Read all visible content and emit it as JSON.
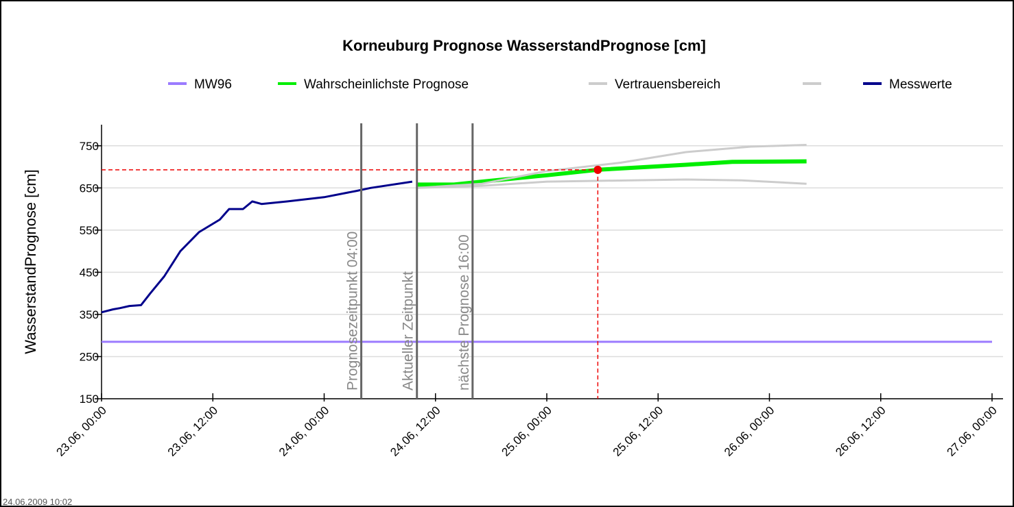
{
  "chart_data": {
    "type": "line",
    "title": "Korneuburg Prognose WasserstandPrognose [cm]",
    "ylabel": "WasserstandPrognose [cm]",
    "footer": "24.06.2009 10:02",
    "xlim": [
      "23.06, 00:00",
      "27.06, 00:00"
    ],
    "xticks": [
      "23.06, 00:00",
      "23.06, 12:00",
      "24.06, 00:00",
      "24.06, 12:00",
      "25.06, 00:00",
      "25.06, 12:00",
      "26.06, 00:00",
      "26.06, 12:00",
      "27.06, 00:00"
    ],
    "ylim": [
      150,
      800
    ],
    "yticks": [
      150,
      250,
      350,
      450,
      550,
      650,
      750
    ],
    "grid": true,
    "series": [
      {
        "name": "MW96",
        "color": "#9b7bff",
        "x": [
          "23.06, 00:00",
          "27.06, 00:00"
        ],
        "values": [
          285,
          285
        ]
      },
      {
        "name": "Wahrscheinlichste Prognose",
        "color": "#00ee00",
        "x": [
          "24.06, 10:00",
          "24.06, 14:00",
          "24.06, 17:00",
          "25.06, 00:00",
          "25.06, 05:30",
          "25.06, 15:00",
          "25.06, 20:00",
          "26.06, 04:00"
        ],
        "values": [
          658,
          658,
          665,
          680,
          693,
          705,
          712,
          713
        ]
      },
      {
        "name": "Vertrauensbereich",
        "color": "#cccccc",
        "x": [
          "24.06, 10:00",
          "24.06, 17:00",
          "25.06, 00:00",
          "25.06, 08:00",
          "25.06, 15:00",
          "25.06, 22:00",
          "26.06, 04:00"
        ],
        "values": [
          650,
          660,
          690,
          710,
          735,
          748,
          752
        ]
      },
      {
        "name": null,
        "color": "#cccccc",
        "x": [
          "24.06, 10:00",
          "24.06, 17:00",
          "25.06, 00:00",
          "25.06, 15:00",
          "25.06, 21:00",
          "26.06, 04:00"
        ],
        "values": [
          650,
          655,
          665,
          670,
          668,
          660
        ]
      },
      {
        "name": "Messwerte",
        "color": "#00008b",
        "x": [
          "23.06, 00:00",
          "23.06, 01:15",
          "23.06, 02:00",
          "23.06, 03:00",
          "23.06, 04:15",
          "23.06, 05:15",
          "23.06, 06:45",
          "23.06, 08:30",
          "23.06, 10:30",
          "23.06, 12:45",
          "23.06, 13:45",
          "23.06, 15:15",
          "23.06, 16:15",
          "23.06, 17:15",
          "23.06, 20:00",
          "24.06, 00:00",
          "24.06, 03:30",
          "24.06, 05:00",
          "24.06, 09:30"
        ],
        "values": [
          355,
          362,
          365,
          370,
          372,
          400,
          440,
          500,
          545,
          575,
          600,
          600,
          618,
          612,
          618,
          628,
          643,
          650,
          665
        ]
      }
    ],
    "vlines": [
      {
        "x": "24.06, 04:00",
        "label": "Prognosezeitpunkt 04:00"
      },
      {
        "x": "24.06, 10:00",
        "label": "Aktueller Zeitpunkt"
      },
      {
        "x": "24.06, 16:00",
        "label": "nächste Prognose 16:00"
      }
    ],
    "marker": {
      "x": "25.06, 05:30",
      "y": 693,
      "color": "#ee0000"
    }
  }
}
